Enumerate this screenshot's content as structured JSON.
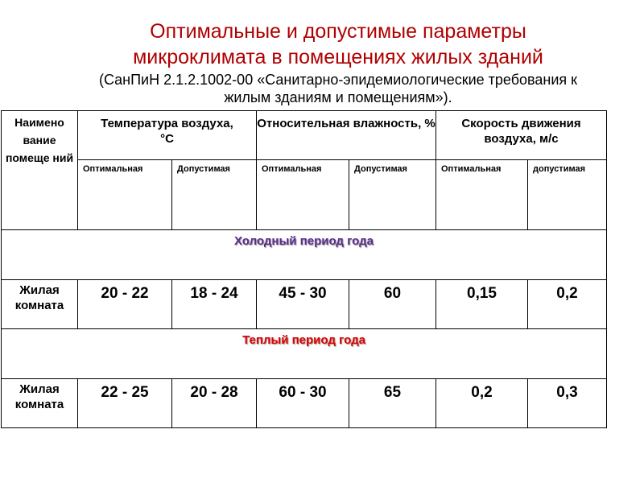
{
  "title": {
    "line1": "Оптимальные и допустимые параметры",
    "line2": "микроклимата в помещениях жилых зданий",
    "subtitle1": "(СанПиН 2.1.2.1002-00 «Санитарно-эпидемиологические требования к",
    "subtitle2": "жилым зданиям и помещениям»)."
  },
  "table": {
    "headers": {
      "name": "Наимено вание помеще ний",
      "temp": "Температура воздуха,",
      "temp_unit": "°С",
      "humidity": "Относительная влажность, %",
      "speed": "Скорость движения воздуха, м/с"
    },
    "subheaders": [
      "Оптимальная",
      "Допустимая",
      "Оптимальная",
      "Допустимая",
      "Оптимальная",
      "допустимая"
    ],
    "cold": {
      "label": "Холодный период года",
      "color": "#5b2d8e",
      "row": [
        "Жилая комната",
        "20 - 22",
        "18 - 24",
        "45 - 30",
        "60",
        "0,15",
        "0,2"
      ]
    },
    "warm": {
      "label": "Теплый период года",
      "color": "#e00000",
      "row": [
        "Жилая комната",
        "22 - 25",
        "20 - 28",
        "60 - 30",
        "65",
        "0,2",
        "0,3"
      ]
    }
  }
}
